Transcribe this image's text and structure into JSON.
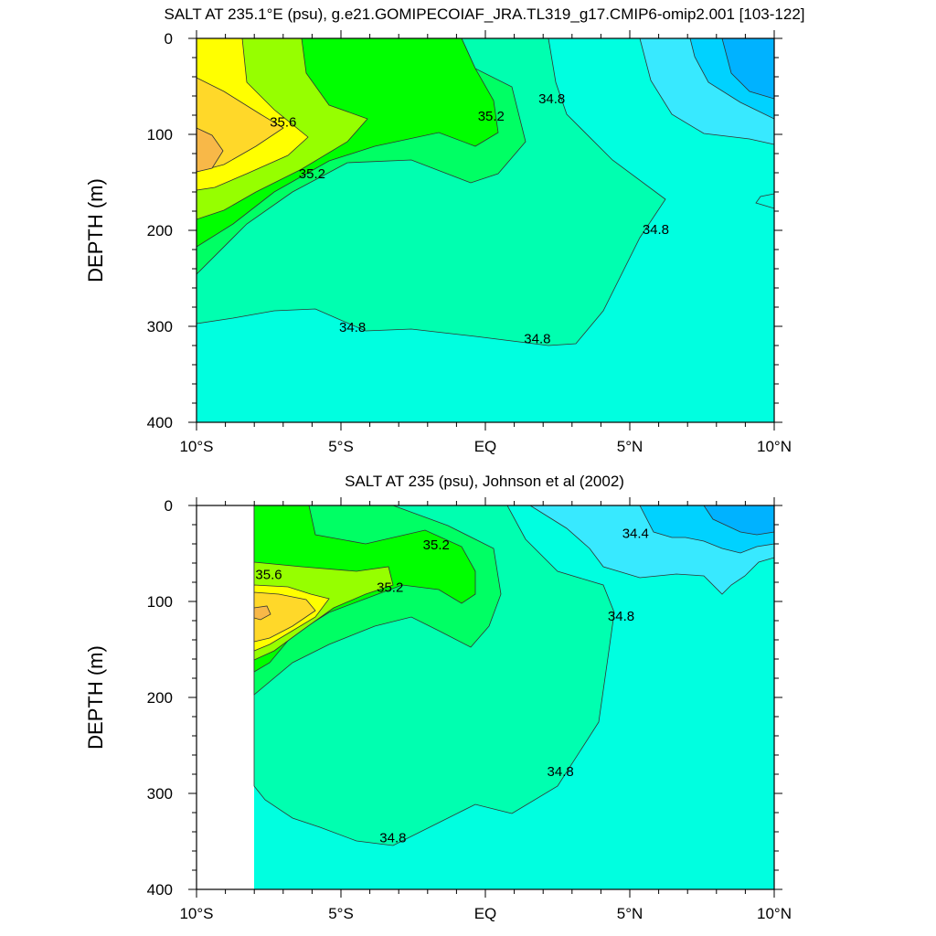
{
  "chart_data": [
    {
      "type": "contour",
      "title": "SALT AT 235.1°E (psu), g.e21.GOMIPECOIAF_JRA.TL319_g17.CMIP6-omip2.001 [103-122]",
      "xlabel": "",
      "ylabel": "DEPTH (m)",
      "xlim": [
        -10,
        10
      ],
      "ylim": [
        400,
        0
      ],
      "x_ticks": [
        {
          "value": -10,
          "label": "10°S"
        },
        {
          "value": -5,
          "label": "5°S"
        },
        {
          "value": 0,
          "label": "EQ"
        },
        {
          "value": 5,
          "label": "5°N"
        },
        {
          "value": 10,
          "label": "10°N"
        }
      ],
      "y_ticks": [
        0,
        100,
        200,
        300,
        400
      ],
      "contour_labels": [
        {
          "text": "35.6",
          "x": -7.0,
          "y": 88
        },
        {
          "text": "35.2",
          "x": -6.0,
          "y": 142
        },
        {
          "text": "35.2",
          "x": 0.2,
          "y": 82
        },
        {
          "text": "34.8",
          "x": 2.3,
          "y": 64
        },
        {
          "text": "34.8",
          "x": 5.9,
          "y": 200
        },
        {
          "text": "34.8",
          "x": -4.6,
          "y": 302
        },
        {
          "text": "34.8",
          "x": 1.8,
          "y": 314
        }
      ]
    },
    {
      "type": "contour",
      "title": "SALT AT 235 (psu), Johnson et al (2002)",
      "xlabel": "",
      "ylabel": "DEPTH (m)",
      "xlim": [
        -10,
        10
      ],
      "ylim": [
        400,
        0
      ],
      "x_ticks": [
        {
          "value": -10,
          "label": "10°S"
        },
        {
          "value": -5,
          "label": "5°S"
        },
        {
          "value": 0,
          "label": "EQ"
        },
        {
          "value": 5,
          "label": "5°N"
        },
        {
          "value": 10,
          "label": "10°N"
        }
      ],
      "y_ticks": [
        0,
        100,
        200,
        300,
        400
      ],
      "contour_labels": [
        {
          "text": "34.4",
          "x": 5.2,
          "y": 30
        },
        {
          "text": "35.2",
          "x": -1.7,
          "y": 42
        },
        {
          "text": "35.6",
          "x": -7.5,
          "y": 73
        },
        {
          "text": "35.2",
          "x": -3.3,
          "y": 86
        },
        {
          "text": "34.8",
          "x": 4.7,
          "y": 116
        },
        {
          "text": "34.8",
          "x": 2.6,
          "y": 278
        },
        {
          "text": "34.8",
          "x": -3.2,
          "y": 347
        }
      ]
    }
  ],
  "colors": {
    "s34_0": "#00b2ff",
    "s34_2": "#00d2ff",
    "s34_4": "#38e9ff",
    "s34_6": "#00ffe0",
    "s34_8": "#00ffb0",
    "s35_0": "#00ff64",
    "s35_2": "#00ff00",
    "s35_4": "#96ff00",
    "s35_6": "#ffff00",
    "s35_8": "#ffd829",
    "s36_0": "#f8b848",
    "contour_line": "#333333",
    "axis": "#000000"
  }
}
